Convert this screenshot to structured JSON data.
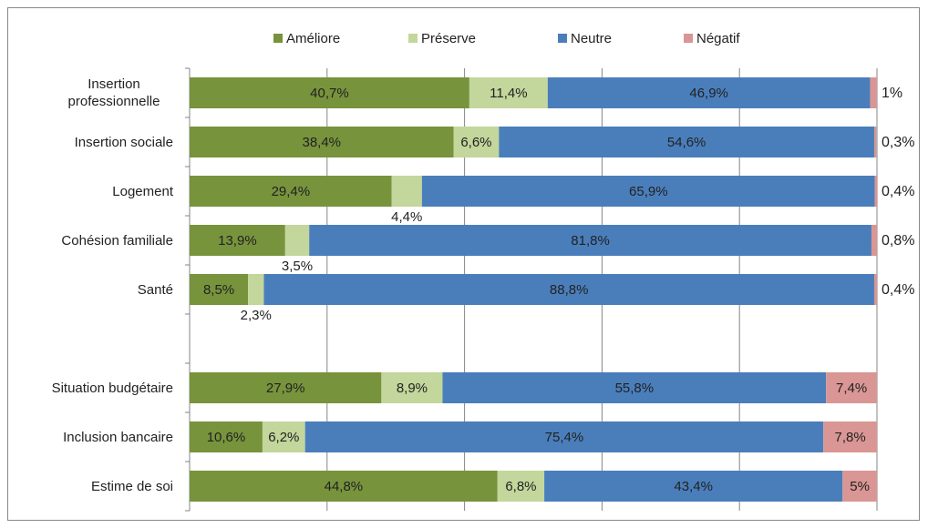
{
  "chart_data": {
    "type": "stacked-bar-horizontal",
    "categories": [
      "Insertion professionnelle",
      "Insertion sociale",
      "Logement",
      "Cohésion familiale",
      "Santé",
      null,
      "Situation budgétaire",
      "Inclusion bancaire",
      "Estime de soi"
    ],
    "series": [
      {
        "name": "Améliore",
        "color": "#77933c",
        "values": [
          40.7,
          38.4,
          29.4,
          13.9,
          8.5,
          null,
          27.9,
          10.6,
          44.8
        ],
        "value_labels": [
          "40,7%",
          "38,4%",
          "29,4%",
          "13,9%",
          "8,5%",
          null,
          "27,9%",
          "10,6%",
          "44,8%"
        ]
      },
      {
        "name": "Préserve",
        "color": "#c3d69b",
        "values": [
          11.4,
          6.6,
          4.4,
          3.5,
          2.3,
          null,
          8.9,
          6.2,
          6.8
        ],
        "value_labels": [
          "11,4%",
          "6,6%",
          "4,4%",
          "3,5%",
          "2,3%",
          null,
          "8,9%",
          "6,2%",
          "6,8%"
        ]
      },
      {
        "name": "Neutre",
        "color": "#4a7ebb",
        "values": [
          46.9,
          54.6,
          65.9,
          81.8,
          88.8,
          null,
          55.8,
          75.4,
          43.4
        ],
        "value_labels": [
          "46,9%",
          "54,6%",
          "65,9%",
          "81,8%",
          "88,8%",
          null,
          "55,8%",
          "75,4%",
          "43,4%"
        ]
      },
      {
        "name": "Négatif",
        "color": "#d99694",
        "values": [
          1,
          0.3,
          0.4,
          0.8,
          0.4,
          null,
          7.4,
          7.8,
          5
        ],
        "value_labels": [
          "1%",
          "0,3%",
          "0,4%",
          "0,8%",
          "0,4%",
          null,
          "7,4%",
          "7,8%",
          "5%"
        ]
      }
    ],
    "xlim": [
      0,
      100
    ],
    "xticks": [
      0,
      20,
      40,
      60,
      80,
      100
    ],
    "grid": true,
    "legend": "top"
  }
}
